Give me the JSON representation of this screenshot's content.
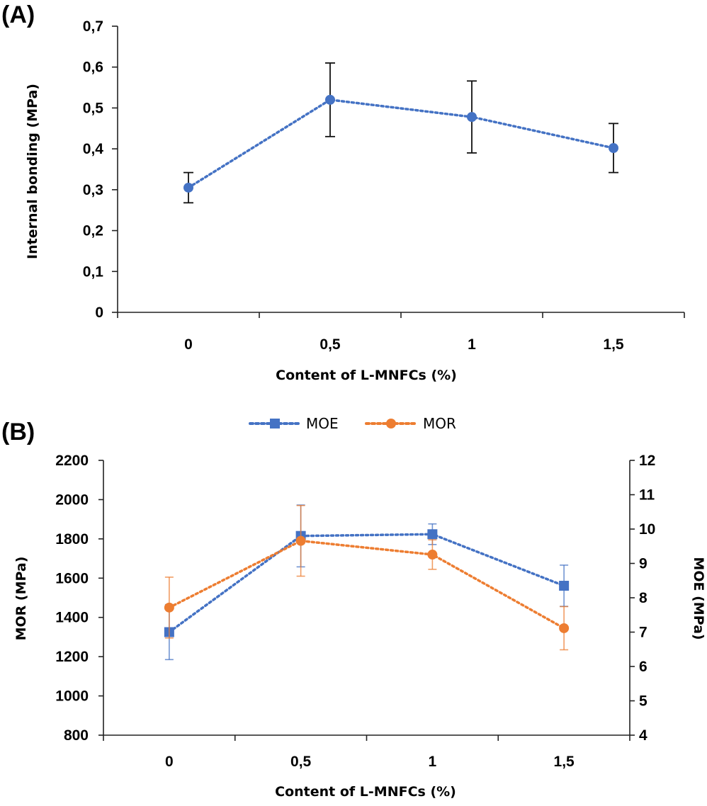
{
  "chart_data": [
    {
      "panel_label": "(A)",
      "type": "line",
      "categories": [
        "0",
        "0,5",
        "1",
        "1,5"
      ],
      "series": [
        {
          "name": "Internal bonding",
          "values": [
            0.305,
            0.52,
            0.478,
            0.402
          ],
          "errors": [
            0.037,
            0.09,
            0.088,
            0.06
          ],
          "color": "#4472C4",
          "marker": "circle",
          "error_color": "#111111"
        }
      ],
      "xlabel": "Content of L-MNFCs (%)",
      "ylabel": "Internal bonding (MPa)",
      "ylim": [
        0,
        0.7
      ],
      "yticks": [
        "0",
        "0,1",
        "0,2",
        "0,3",
        "0,4",
        "0,5",
        "0,6",
        "0,7"
      ],
      "grid": false
    },
    {
      "panel_label": "(B)",
      "type": "line",
      "categories": [
        "0",
        "0,5",
        "1",
        "1,5"
      ],
      "legend": [
        "MOE",
        "MOR"
      ],
      "legend_position": "top-center",
      "series": [
        {
          "name": "MOE",
          "axis": "right",
          "values": [
            7.0,
            9.8,
            9.85,
            8.35
          ],
          "errors": [
            0.8,
            0.9,
            0.3,
            0.6
          ],
          "color": "#4472C4",
          "marker": "square"
        },
        {
          "name": "MOR",
          "axis": "left",
          "values": [
            1450,
            1790,
            1720,
            1345
          ],
          "errors": [
            155,
            180,
            75,
            110
          ],
          "color": "#ED7D31",
          "marker": "circle"
        }
      ],
      "xlabel": "Content of L-MNFCs (%)",
      "ylabel_left": "MOR (MPa)",
      "ylabel_right": "MOE (MPa)",
      "ylim_left": [
        800,
        2200
      ],
      "ylim_right": [
        4,
        12
      ],
      "yticks_left": [
        "800",
        "1000",
        "1200",
        "1400",
        "1600",
        "1800",
        "2000",
        "2200"
      ],
      "yticks_right": [
        "4",
        "5",
        "6",
        "7",
        "8",
        "9",
        "10",
        "11",
        "12"
      ],
      "grid": false
    }
  ]
}
